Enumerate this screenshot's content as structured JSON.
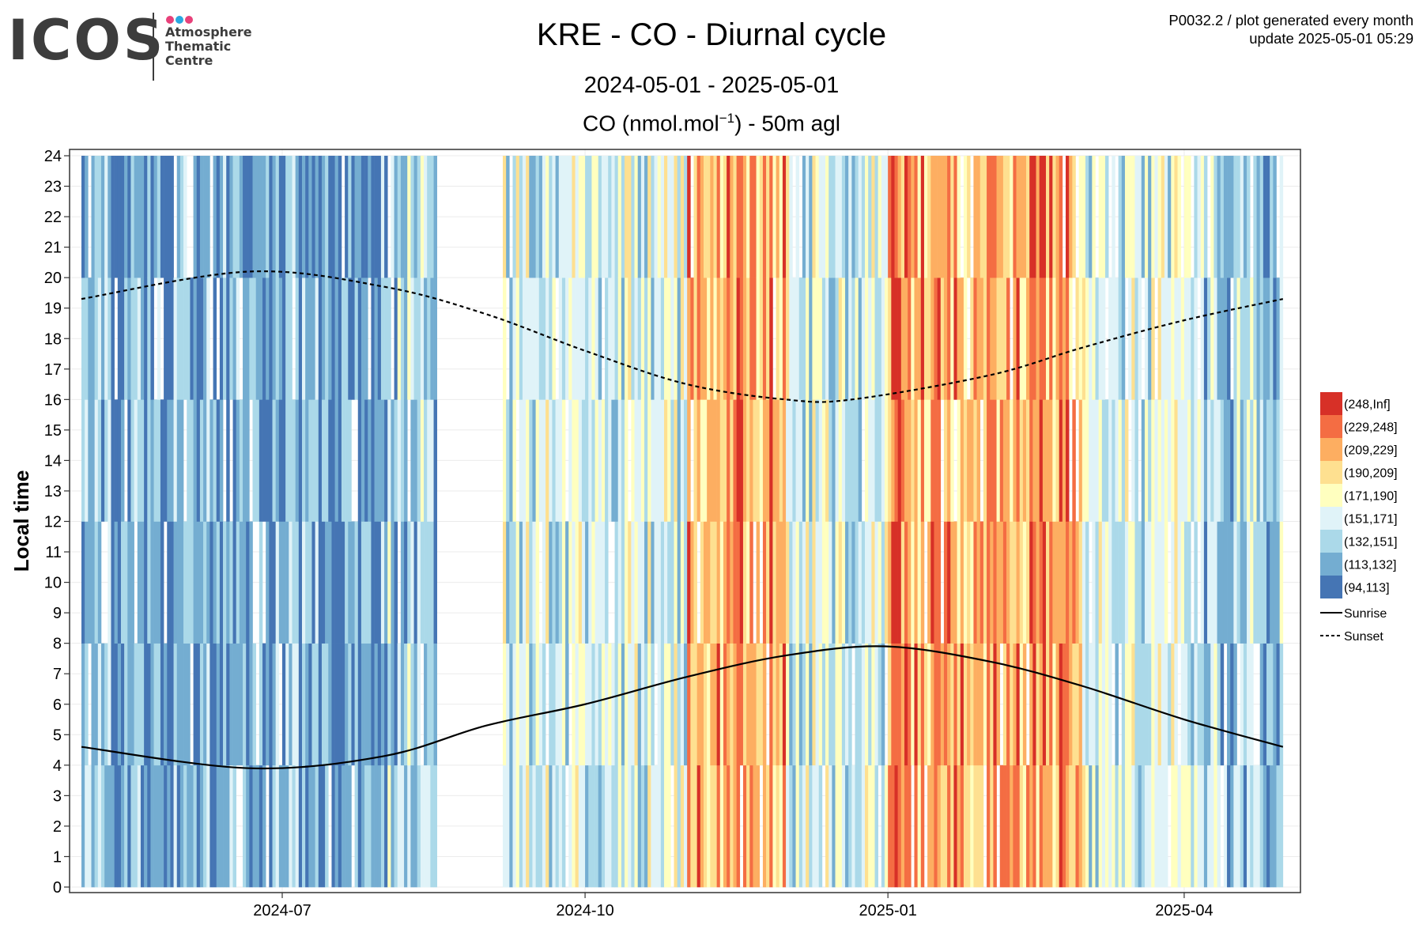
{
  "logo": {
    "text": "ICOS",
    "subtitle_lines": [
      "Atmosphere",
      "Thematic",
      "Centre"
    ],
    "dot_colors": [
      "#e8417a",
      "#2aa8e0",
      "#e8417a"
    ]
  },
  "header": {
    "title": "KRE - CO - Diurnal cycle",
    "period": "2024-05-01 - 2025-05-01",
    "units_prefix": "CO (nmol.mol",
    "units_exp": "−1",
    "units_suffix": ") - 50m agl",
    "plot_id": "P0032.2 / plot generated every month",
    "update": "update  2025-05-01 05:29"
  },
  "chart_data": {
    "type": "heatmap",
    "title": "KRE - CO - Diurnal cycle",
    "ylabel": "Local time",
    "xlabel": "",
    "x_range": [
      "2024-05-01",
      "2025-05-01"
    ],
    "ylim": [
      0,
      24
    ],
    "x_ticks": [
      "2024-07",
      "2024-10",
      "2025-01",
      "2025-04"
    ],
    "y_ticks": [
      "0",
      "1",
      "2",
      "3",
      "4",
      "5",
      "6",
      "7",
      "8",
      "9",
      "10",
      "11",
      "12",
      "13",
      "14",
      "15",
      "16",
      "17",
      "18",
      "19",
      "20",
      "21",
      "22",
      "23",
      "24"
    ],
    "grid": true,
    "legend_position": "right",
    "color_bins": [
      {
        "label": "(248,Inf]",
        "color": "#d73027"
      },
      {
        "label": "(229,248]",
        "color": "#f46d43"
      },
      {
        "label": "(209,229]",
        "color": "#fdae61"
      },
      {
        "label": "(190,209]",
        "color": "#fee090"
      },
      {
        "label": "(171,190]",
        "color": "#ffffbf"
      },
      {
        "label": "(151,171]",
        "color": "#e0f3f8"
      },
      {
        "label": "(132,151]",
        "color": "#abd9e9"
      },
      {
        "label": "(113,132]",
        "color": "#74add1"
      },
      {
        "label": "(94,113]",
        "color": "#4575b4"
      }
    ],
    "monthly_dominant_bin": [
      {
        "month": "2024-05",
        "bin": "(113,132]"
      },
      {
        "month": "2024-06",
        "bin": "(113,132]"
      },
      {
        "month": "2024-07",
        "bin": "(113,132]"
      },
      {
        "month": "2024-08",
        "bin": "(132,151]"
      },
      {
        "month": "2024-09",
        "bin": "(151,171]"
      },
      {
        "month": "2024-10",
        "bin": "(151,171]"
      },
      {
        "month": "2024-11",
        "bin": "(209,229]"
      },
      {
        "month": "2024-12",
        "bin": "(151,171]"
      },
      {
        "month": "2025-01",
        "bin": "(209,229]"
      },
      {
        "month": "2025-02",
        "bin": "(209,229]"
      },
      {
        "month": "2025-03",
        "bin": "(151,171]"
      },
      {
        "month": "2025-04",
        "bin": "(132,151]"
      }
    ],
    "missing_data_periods": [
      [
        "2024-08-17",
        "2024-09-05"
      ]
    ],
    "series": [
      {
        "name": "Sunrise",
        "line": "solid",
        "x": [
          "2024-05-01",
          "2024-06-21",
          "2024-08-01",
          "2024-09-01",
          "2024-10-01",
          "2024-11-01",
          "2024-12-01",
          "2024-12-31",
          "2025-02-01",
          "2025-03-01",
          "2025-04-01",
          "2025-05-01"
        ],
        "values": [
          4.6,
          3.9,
          4.3,
          5.3,
          6.0,
          6.9,
          7.6,
          7.9,
          7.4,
          6.6,
          5.5,
          4.6
        ]
      },
      {
        "name": "Sunset",
        "line": "dashed",
        "x": [
          "2024-05-01",
          "2024-06-21",
          "2024-08-01",
          "2024-09-01",
          "2024-10-01",
          "2024-11-01",
          "2024-12-01",
          "2024-12-21",
          "2025-02-01",
          "2025-03-01",
          "2025-04-01",
          "2025-05-01"
        ],
        "values": [
          19.3,
          20.2,
          19.7,
          18.8,
          17.6,
          16.5,
          16.0,
          16.0,
          16.8,
          17.7,
          18.6,
          19.3
        ]
      }
    ]
  }
}
